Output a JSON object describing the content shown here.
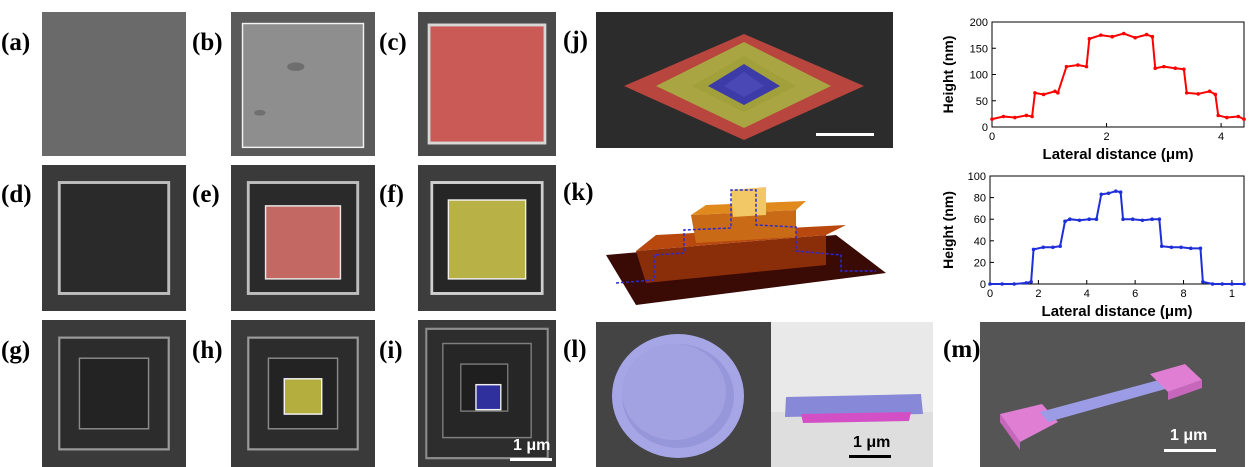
{
  "panels": {
    "a": "(a)",
    "b": "(b)",
    "c": "(c)",
    "d": "(d)",
    "e": "(e)",
    "f": "(f)",
    "g": "(g)",
    "h": "(h)",
    "i": "(i)",
    "j": "(j)",
    "k": "(k)",
    "l": "(l)",
    "m": "(m)"
  },
  "scalebars": {
    "i": "1 μm",
    "l": "1 μm",
    "m": "1 μm"
  },
  "colors": {
    "red_overlay": "#e0706a",
    "yellow_overlay": "#d6d24e",
    "blue_overlay": "#3b3bb0",
    "lavender": "#9c9ce0",
    "pink": "#e07ed6",
    "red_line": "#ff0000",
    "blue_line": "#1f2fd8"
  },
  "chart_data": [
    {
      "type": "line",
      "xlabel": "Lateral distance (μm)",
      "ylabel": "Height (nm)",
      "xlim": [
        0,
        4.4
      ],
      "ylim": [
        0,
        200
      ],
      "xticks": [
        "0",
        "2",
        "4"
      ],
      "yticks": [
        "0",
        "50",
        "100",
        "150",
        "200"
      ],
      "color": "#ff0000",
      "series": [
        {
          "x": [
            0,
            0.2,
            0.4,
            0.6,
            0.7,
            0.75,
            0.9,
            1.1,
            1.15,
            1.3,
            1.5,
            1.65,
            1.7,
            1.9,
            2.1,
            2.3,
            2.5,
            2.7,
            2.8,
            2.85,
            3.0,
            3.2,
            3.35,
            3.4,
            3.6,
            3.8,
            3.9,
            3.95,
            4.1,
            4.3,
            4.4
          ],
          "y": [
            15,
            20,
            18,
            22,
            20,
            65,
            62,
            68,
            65,
            115,
            118,
            115,
            168,
            175,
            172,
            178,
            170,
            176,
            172,
            112,
            115,
            112,
            110,
            65,
            63,
            68,
            62,
            22,
            18,
            20,
            15
          ]
        }
      ]
    },
    {
      "type": "line",
      "xlabel": "Lateral distance (μm)",
      "ylabel": "Height (nm)",
      "xlim": [
        0,
        10.5
      ],
      "ylim": [
        0,
        100
      ],
      "xticks": [
        "0",
        "2",
        "4",
        "6",
        "8",
        "1"
      ],
      "yticks": [
        "0",
        "20",
        "40",
        "60",
        "80",
        "100"
      ],
      "color": "#1f2fd8",
      "series": [
        {
          "x": [
            0,
            0.5,
            1.0,
            1.5,
            1.7,
            1.8,
            2.2,
            2.6,
            2.9,
            3.1,
            3.3,
            3.7,
            4.1,
            4.4,
            4.6,
            4.9,
            5.2,
            5.4,
            5.5,
            5.9,
            6.3,
            6.7,
            7.0,
            7.1,
            7.5,
            7.9,
            8.3,
            8.7,
            8.8,
            9.2,
            9.6,
            10.0,
            10.5
          ],
          "y": [
            0,
            0,
            0,
            1,
            2,
            32,
            34,
            34,
            35,
            58,
            60,
            59,
            60,
            60,
            83,
            84,
            86,
            85,
            60,
            60,
            59,
            60,
            60,
            35,
            34,
            34,
            33,
            33,
            2,
            0,
            0,
            0,
            0
          ]
        }
      ]
    }
  ]
}
